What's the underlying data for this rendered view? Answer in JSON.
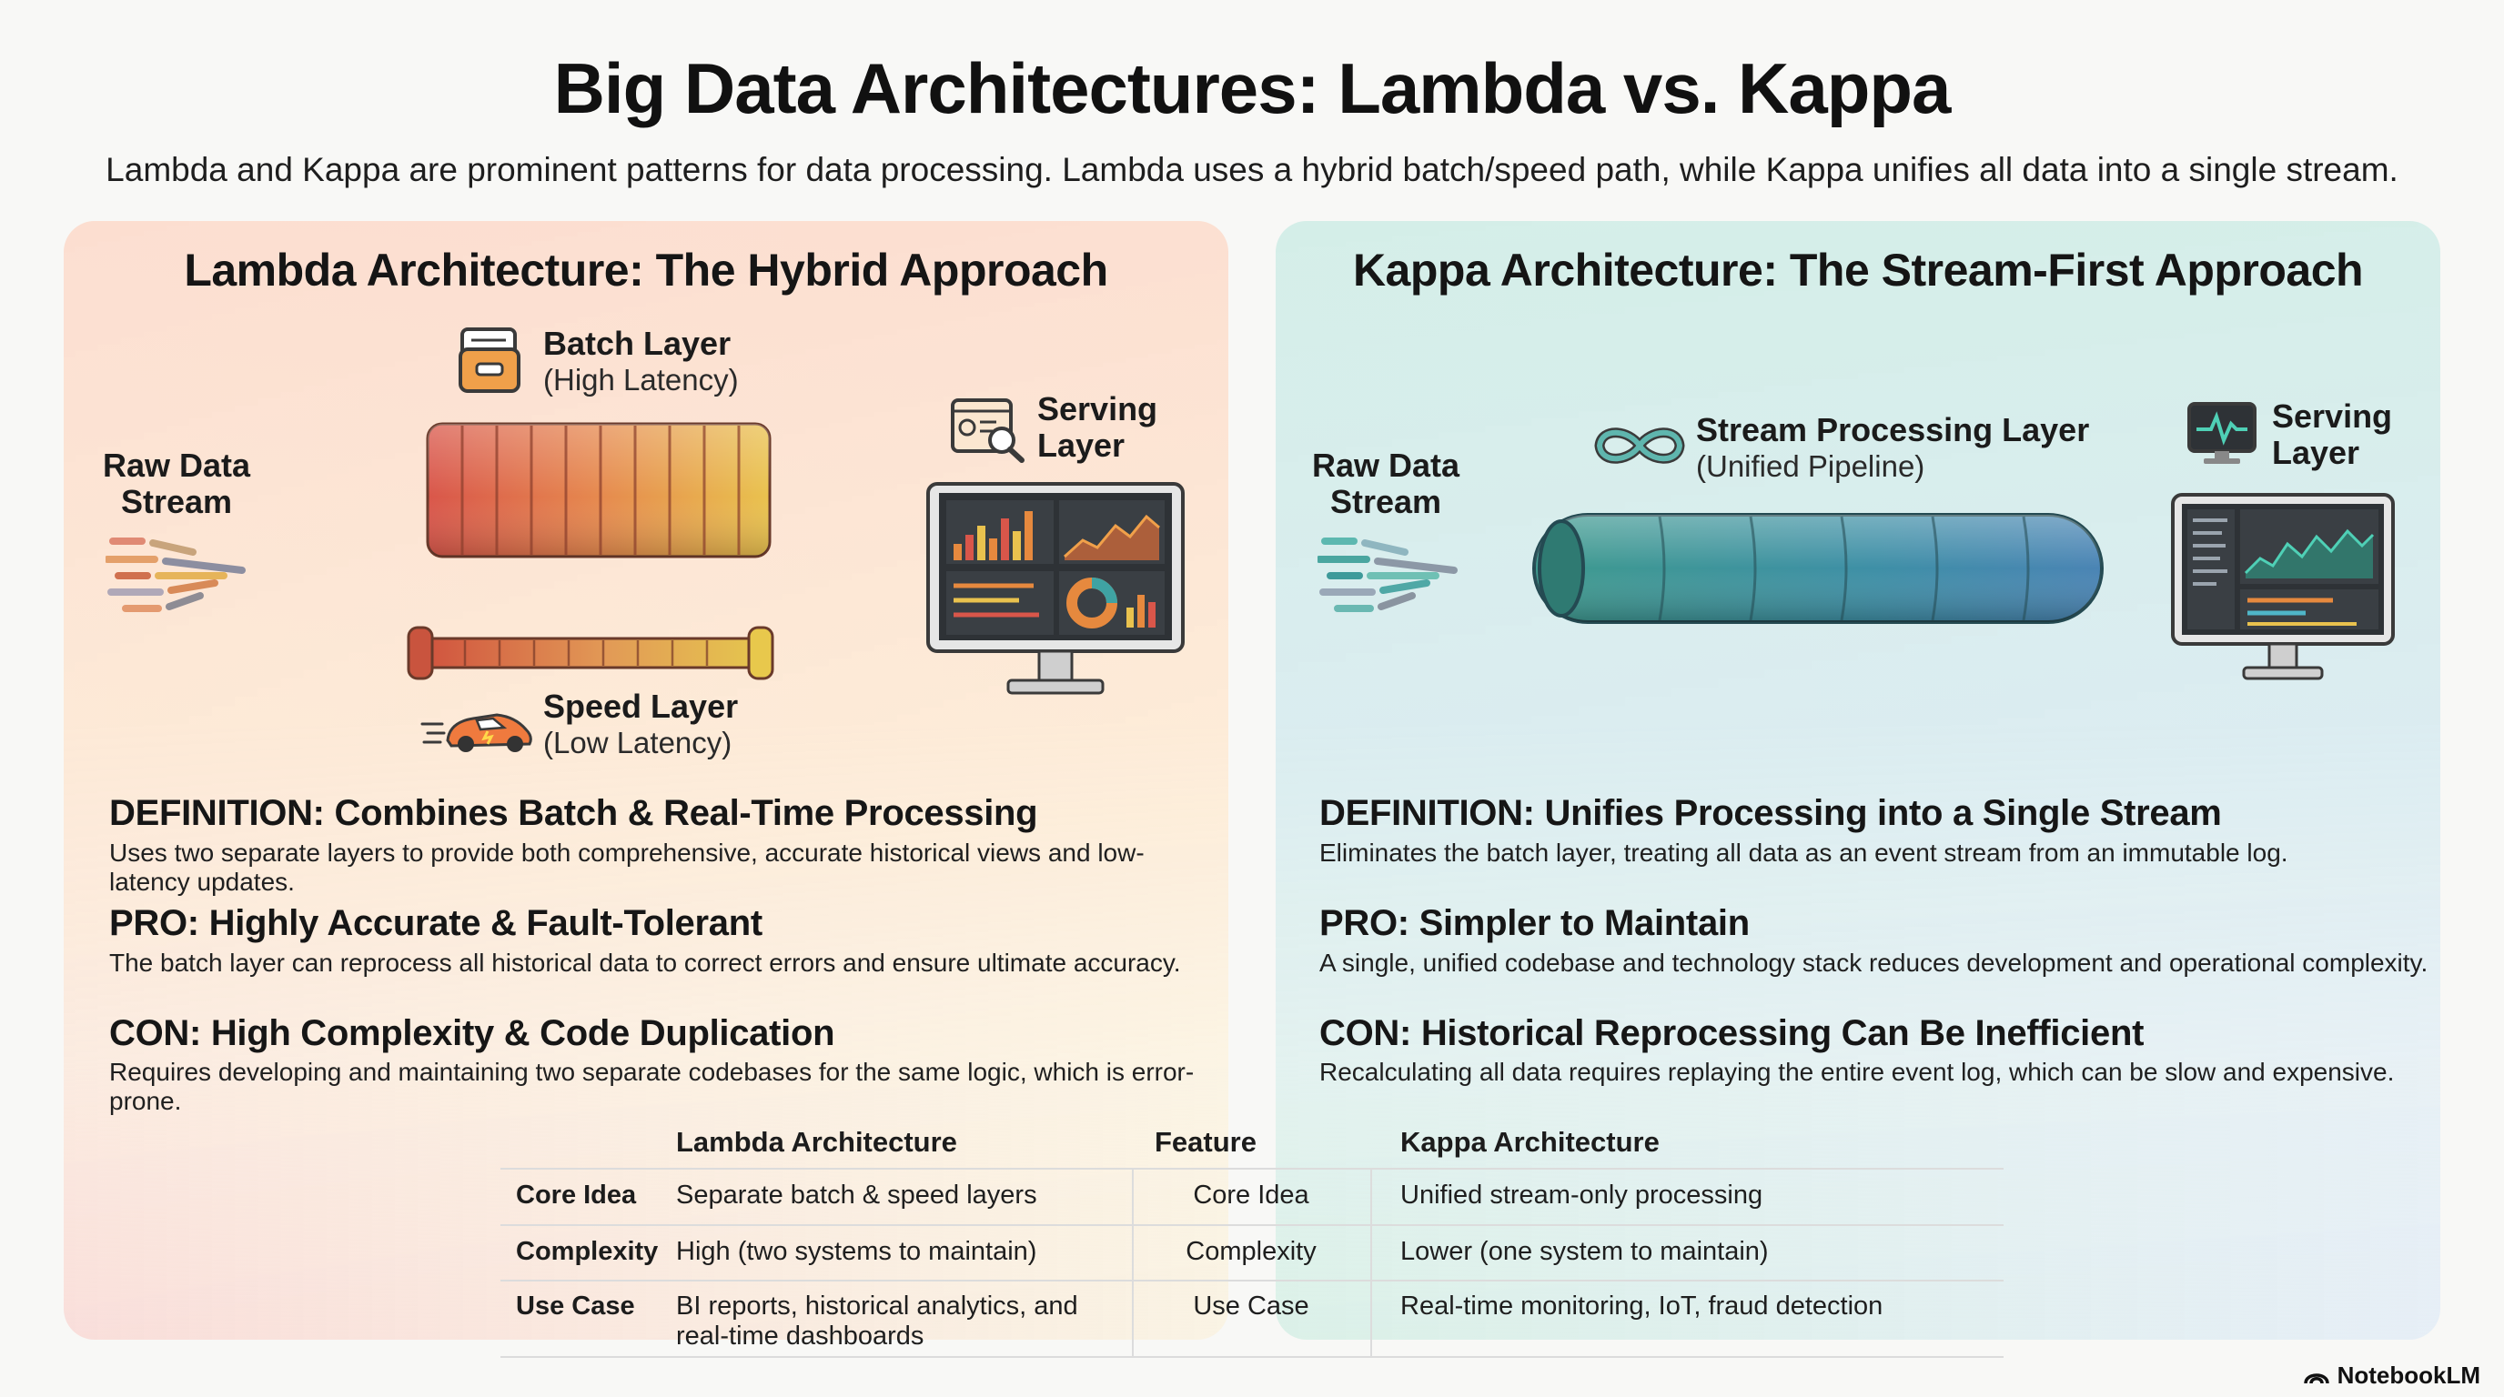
{
  "title": "Big Data Architectures: Lambda vs. Kappa",
  "subtitle": "Lambda and Kappa are prominent patterns for data processing. Lambda uses a hybrid batch/speed path, while Kappa unifies all data into a single stream.",
  "lambda": {
    "title": "Lambda Architecture: The Hybrid Approach",
    "raw_data": [
      "Raw Data",
      "Stream"
    ],
    "batch_layer": {
      "name": "Batch Layer",
      "note": "(High Latency)"
    },
    "speed_layer": {
      "name": "Speed Layer",
      "note": "(Low Latency)"
    },
    "serving_layer": [
      "Serving",
      "Layer"
    ],
    "definition": {
      "heading": "DEFINITION: Combines Batch & Real-Time Processing",
      "body": "Uses two separate layers to provide both comprehensive, accurate historical views and low-latency updates."
    },
    "pro": {
      "heading": "PRO: Highly Accurate & Fault-Tolerant",
      "body": "The batch layer can reprocess all historical data to correct errors and ensure ultimate accuracy."
    },
    "con": {
      "heading": "CON: High Complexity & Code Duplication",
      "body": "Requires developing and maintaining two separate codebases for the same logic, which is error-prone."
    }
  },
  "kappa": {
    "title": "Kappa Architecture: The Stream-First Approach",
    "raw_data": [
      "Raw Data",
      "Stream"
    ],
    "stream_layer": {
      "name": "Stream Processing Layer",
      "note": "(Unified Pipeline)"
    },
    "serving_layer": [
      "Serving",
      "Layer"
    ],
    "definition": {
      "heading": "DEFINITION: Unifies Processing into a Single Stream",
      "body": "Eliminates the batch layer, treating all data as an event stream from an immutable log."
    },
    "pro": {
      "heading": "PRO: Simpler to Maintain",
      "body": "A single, unified codebase and technology stack reduces development and operational complexity."
    },
    "con": {
      "heading": "CON: Historical Reprocessing Can Be Inefficient",
      "body": "Recalculating all data requires replaying the entire event log, which can be slow and expensive."
    }
  },
  "table": {
    "headers": {
      "lambda": "Lambda Architecture",
      "feature": "Feature",
      "kappa": "Kappa Architecture"
    },
    "rows": [
      {
        "label": "Core Idea",
        "lambda": [
          "Separate batch & speed layers"
        ],
        "feature": "Core Idea",
        "kappa": "Unified stream-only processing"
      },
      {
        "label": "Complexity",
        "lambda": [
          "High (two systems to maintain)"
        ],
        "feature": "Complexity",
        "kappa": "Lower (one system to maintain)"
      },
      {
        "label": "Use Case",
        "lambda": [
          "BI reports, historical analytics, and",
          "real-time dashboards"
        ],
        "feature": "Use Case",
        "kappa": "Real-time monitoring, IoT, fraud detection"
      }
    ]
  },
  "brand": "NotebookLM",
  "colors": {
    "lambda_gradient_start": "#d9564a",
    "lambda_gradient_end": "#e9c24e",
    "kappa_pipe": "#3e9a9a"
  }
}
